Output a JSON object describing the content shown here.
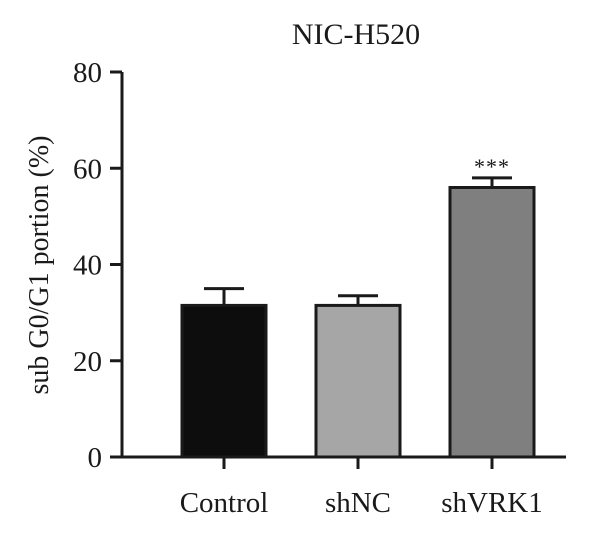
{
  "chart_data": {
    "type": "bar",
    "title": "NIC-H520",
    "ylabel": "sub G0/G1 portion (%)",
    "xlabel": "",
    "ylim": [
      0,
      80
    ],
    "yticks": [
      "0",
      "20",
      "40",
      "60",
      "80"
    ],
    "categories": [
      "Control",
      "shNC",
      "shVRK1"
    ],
    "values": [
      31.5,
      31.5,
      56
    ],
    "errors": [
      3.5,
      2,
      2
    ],
    "colors": [
      "#0d0d0d",
      "#a6a6a6",
      "#7f7f7f"
    ],
    "annotations": [
      "",
      "",
      "***"
    ]
  }
}
